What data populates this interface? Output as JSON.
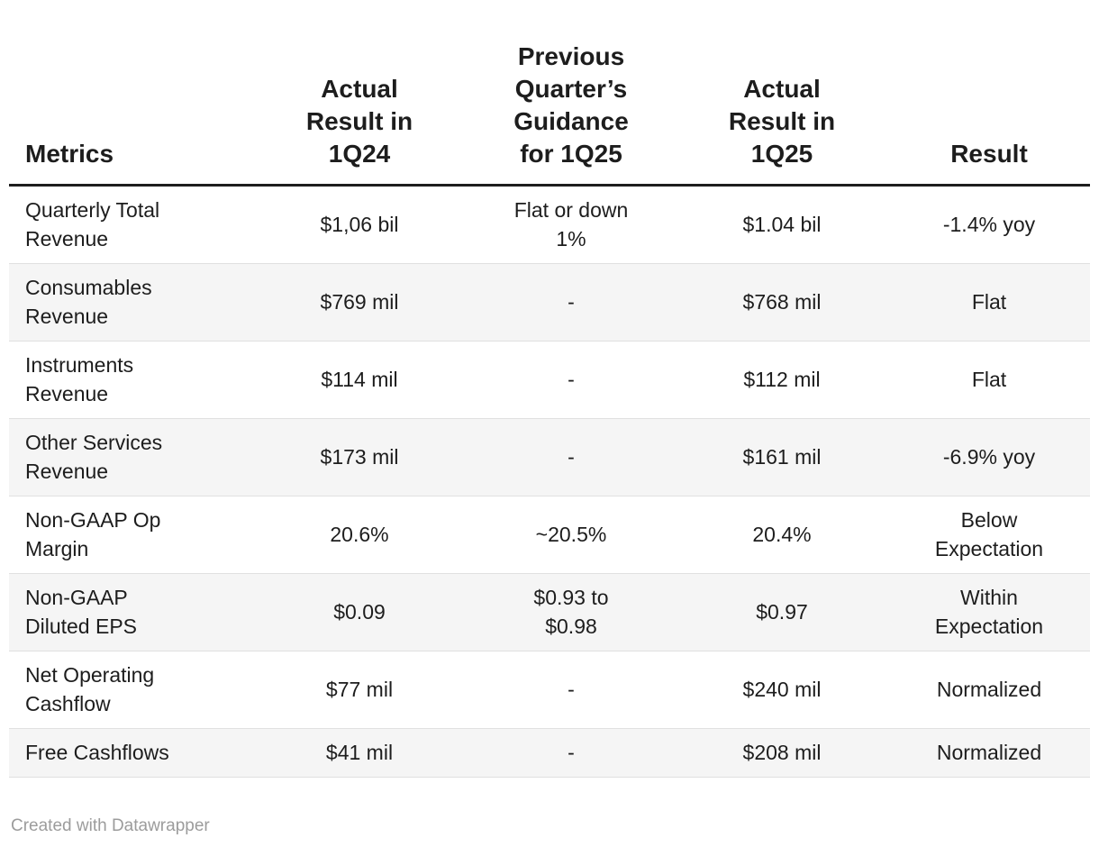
{
  "chart_data": {
    "type": "table",
    "columns": [
      {
        "id": "metric",
        "label": "Metrics",
        "align": "left"
      },
      {
        "id": "actual_1q24",
        "label": "Actual\nResult in\n1Q24",
        "align": "center"
      },
      {
        "id": "guidance_1q25",
        "label": "Previous\nQuarter’s\nGuidance\nfor 1Q25",
        "align": "center"
      },
      {
        "id": "actual_1q25",
        "label": "Actual\nResult in\n1Q25",
        "align": "center"
      },
      {
        "id": "result",
        "label": "Result",
        "align": "center"
      }
    ],
    "rows": [
      {
        "metric": "Quarterly Total\nRevenue",
        "actual_1q24": "$1,06 bil",
        "guidance_1q25": "Flat or down\n1%",
        "actual_1q25": "$1.04 bil",
        "result": "-1.4% yoy"
      },
      {
        "metric": "Consumables\nRevenue",
        "actual_1q24": "$769 mil",
        "guidance_1q25": "-",
        "actual_1q25": "$768 mil",
        "result": "Flat"
      },
      {
        "metric": "Instruments\nRevenue",
        "actual_1q24": "$114 mil",
        "guidance_1q25": "-",
        "actual_1q25": "$112 mil",
        "result": "Flat"
      },
      {
        "metric": "Other Services\nRevenue",
        "actual_1q24": "$173 mil",
        "guidance_1q25": "-",
        "actual_1q25": "$161 mil",
        "result": "-6.9% yoy"
      },
      {
        "metric": "Non-GAAP Op\nMargin",
        "actual_1q24": "20.6%",
        "guidance_1q25": "~20.5%",
        "actual_1q25": "20.4%",
        "result": "Below\nExpectation"
      },
      {
        "metric": "Non-GAAP\nDiluted EPS",
        "actual_1q24": "$0.09",
        "guidance_1q25": "$0.93 to\n$0.98",
        "actual_1q25": "$0.97",
        "result": "Within\nExpectation"
      },
      {
        "metric": "Net Operating\nCashflow",
        "actual_1q24": "$77 mil",
        "guidance_1q25": "-",
        "actual_1q25": "$240 mil",
        "result": "Normalized"
      },
      {
        "metric": "Free Cashflows",
        "actual_1q24": "$41 mil",
        "guidance_1q25": "-",
        "actual_1q25": "$208 mil",
        "result": "Normalized"
      }
    ],
    "layout_hints": {
      "zebra_striping": true,
      "header_rule": "thick-bottom-border",
      "first_column_align": "left",
      "other_columns_align": "center"
    }
  },
  "footer": {
    "credit": "Created with Datawrapper"
  },
  "colors": {
    "text": "#1d1d1d",
    "stripe": "#f5f5f5",
    "row_border": "#e0e0e0",
    "header_rule": "#1d1d1d",
    "footer_text": "#9c9c9c",
    "background": "#ffffff"
  }
}
